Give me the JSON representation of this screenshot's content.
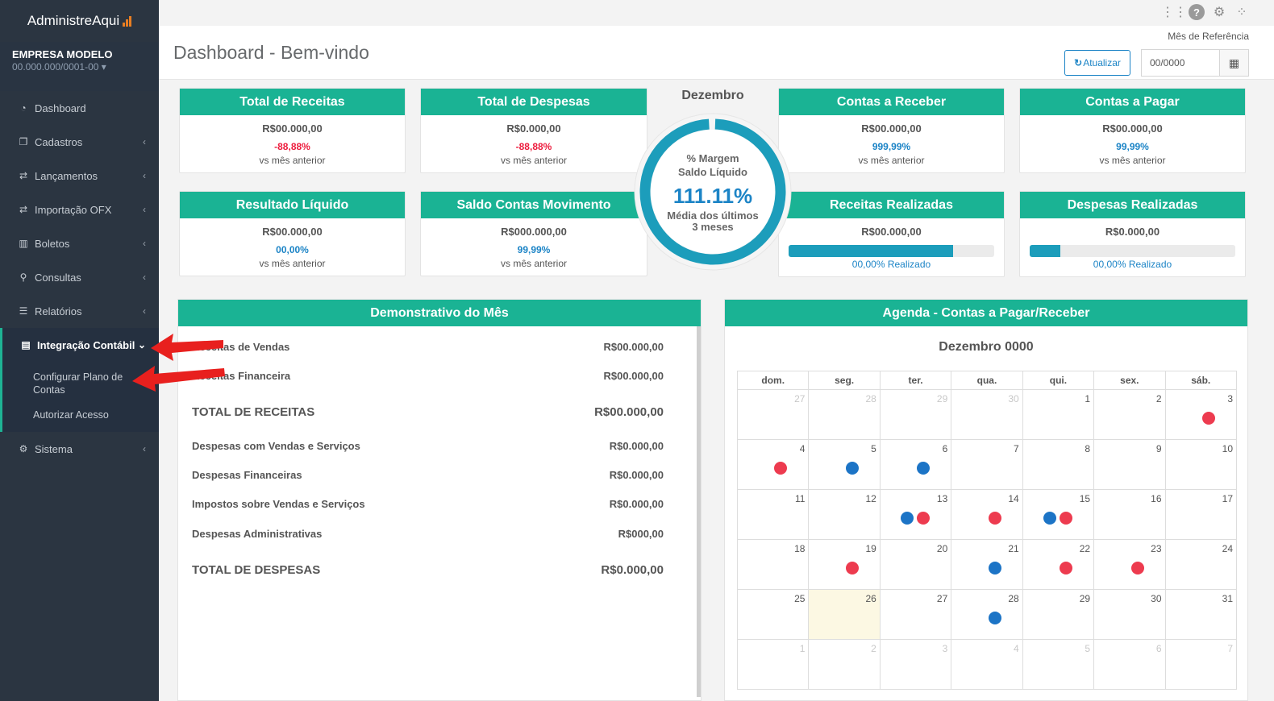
{
  "brand": {
    "name": "AdministreAqui"
  },
  "company": {
    "name": "EMPRESA MODELO",
    "cnpj": "00.000.000/0001-00 ▾"
  },
  "menu": [
    {
      "label": "Dashboard",
      "icon": "dashboard-icon"
    },
    {
      "label": "Cadastros",
      "icon": "copy-icon"
    },
    {
      "label": "Lançamentos",
      "icon": "exchange-icon"
    },
    {
      "label": "Importação OFX",
      "icon": "exchange-icon"
    },
    {
      "label": "Boletos",
      "icon": "barcode-icon"
    },
    {
      "label": "Consultas",
      "icon": "search-icon"
    },
    {
      "label": "Relatórios",
      "icon": "list-icon"
    },
    {
      "label": "Integração Contábil",
      "icon": "table-icon"
    },
    {
      "label": "Sistema",
      "icon": "cogs-icon"
    }
  ],
  "submenu": [
    "Configurar Plano de Contas",
    "Autorizar Acesso"
  ],
  "header": {
    "title": "Dashboard - Bem-vindo",
    "ref_label": "Mês de Referência",
    "update_label": "Atualizar",
    "month_value": "00/0000"
  },
  "cards": {
    "receitas": {
      "title": "Total de Receitas",
      "value": "R$00.000,00",
      "pct": "-88,88%",
      "vs": "vs mês anterior"
    },
    "despesas": {
      "title": "Total de Despesas",
      "value": "R$0.000,00",
      "pct": "-88,88%",
      "vs": "vs mês anterior"
    },
    "receber": {
      "title": "Contas a Receber",
      "value": "R$00.000,00",
      "pct": "999,99%",
      "vs": "vs mês anterior"
    },
    "pagar": {
      "title": "Contas a Pagar",
      "value": "R$00.000,00",
      "pct": "99,99%",
      "vs": "vs mês anterior"
    },
    "resultado": {
      "title": "Resultado Líquido",
      "value": "R$00.000,00",
      "pct": "00,00%",
      "vs": "vs mês anterior"
    },
    "saldo": {
      "title": "Saldo Contas Movimento",
      "value": "R$000.000,00",
      "pct": "99,99%",
      "vs": "vs mês anterior"
    },
    "rec_real": {
      "title": "Receitas Realizadas",
      "value": "R$00.000,00",
      "realizado": "00,00% Realizado",
      "progress": 0.8
    },
    "desp_real": {
      "title": "Despesas Realizadas",
      "value": "R$0.000,00",
      "realizado": "00,00% Realizado",
      "progress": 0.15
    }
  },
  "donut": {
    "month": "Dezembro",
    "label1": "% Margem",
    "label2": "Saldo Líquido",
    "value": "111.11%",
    "sub1": "Média dos últimos",
    "sub2": "3 meses"
  },
  "demonstrativo": {
    "title": "Demonstrativo do Mês",
    "rows": [
      {
        "label": "Receitas de Vendas",
        "value": "R$00.000,00"
      },
      {
        "label": "Receitas Financeira",
        "value": "R$00.000,00"
      },
      {
        "label": "TOTAL DE RECEITAS",
        "value": "R$00.000,00"
      },
      {
        "label": "Despesas com Vendas e Serviços",
        "value": "R$0.000,00"
      },
      {
        "label": "Despesas Financeiras",
        "value": "R$0.000,00"
      },
      {
        "label": "Impostos sobre Vendas e Serviços",
        "value": "R$0.000,00"
      },
      {
        "label": "Despesas Administrativas",
        "value": "R$000,00"
      },
      {
        "label": "TOTAL DE DESPESAS",
        "value": "R$0.000,00"
      }
    ]
  },
  "agenda": {
    "title": "Agenda - Contas a Pagar/Receber",
    "month": "Dezembro 0000",
    "weekdays": [
      "dom.",
      "seg.",
      "ter.",
      "qua.",
      "qui.",
      "sex.",
      "sáb."
    ],
    "weeks": [
      [
        {
          "d": "27",
          "o": true
        },
        {
          "d": "28",
          "o": true
        },
        {
          "d": "29",
          "o": true
        },
        {
          "d": "30",
          "o": true
        },
        {
          "d": "1"
        },
        {
          "d": "2"
        },
        {
          "d": "3",
          "dots": [
            "r"
          ]
        }
      ],
      [
        {
          "d": "4",
          "dots": [
            "r"
          ]
        },
        {
          "d": "5",
          "dots": [
            "b"
          ]
        },
        {
          "d": "6",
          "dots": [
            "b"
          ]
        },
        {
          "d": "7"
        },
        {
          "d": "8"
        },
        {
          "d": "9"
        },
        {
          "d": "10"
        }
      ],
      [
        {
          "d": "11"
        },
        {
          "d": "12"
        },
        {
          "d": "13",
          "dots": [
            "b",
            "r"
          ]
        },
        {
          "d": "14",
          "dots": [
            "r"
          ]
        },
        {
          "d": "15",
          "dots": [
            "b",
            "r"
          ]
        },
        {
          "d": "16"
        },
        {
          "d": "17"
        }
      ],
      [
        {
          "d": "18"
        },
        {
          "d": "19",
          "dots": [
            "r"
          ]
        },
        {
          "d": "20"
        },
        {
          "d": "21",
          "dots": [
            "b"
          ]
        },
        {
          "d": "22",
          "dots": [
            "r"
          ]
        },
        {
          "d": "23",
          "dots": [
            "r"
          ]
        },
        {
          "d": "24"
        }
      ],
      [
        {
          "d": "25"
        },
        {
          "d": "26",
          "today": true
        },
        {
          "d": "27"
        },
        {
          "d": "28",
          "dots": [
            "b"
          ]
        },
        {
          "d": "29"
        },
        {
          "d": "30"
        },
        {
          "d": "31"
        }
      ],
      [
        {
          "d": "1",
          "o": true
        },
        {
          "d": "2",
          "o": true
        },
        {
          "d": "3",
          "o": true
        },
        {
          "d": "4",
          "o": true
        },
        {
          "d": "5",
          "o": true
        },
        {
          "d": "6",
          "o": true
        },
        {
          "d": "7",
          "o": true
        }
      ]
    ]
  },
  "colors": {
    "teal": "#1ab394",
    "blue": "#1c84c6",
    "red": "#ed1c3d",
    "sidebar": "#2b3541"
  }
}
